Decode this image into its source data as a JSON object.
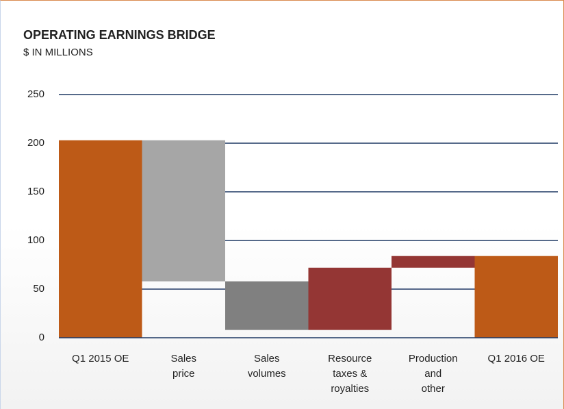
{
  "chart_data": {
    "type": "waterfall",
    "title": "OPERATING EARNINGS BRIDGE",
    "subtitle": "$ IN MILLIONS",
    "categories": [
      "Q1 2015 OE",
      "Sales\nprice",
      "Sales\nvolumes",
      "Resource\ntaxes &\nroyalties",
      "Production\nand\nother",
      "Q1 2016 OE"
    ],
    "values": [
      203,
      -145,
      -50,
      64,
      12,
      84
    ],
    "colors": [
      "#bd5a17",
      "#a6a6a6",
      "#808080",
      "#943634",
      "#943634",
      "#bd5a17"
    ],
    "ylim": [
      0,
      250
    ],
    "yticks": [
      0,
      50,
      100,
      150,
      200,
      250
    ],
    "grid": true,
    "grid_color": "#1f3864"
  }
}
